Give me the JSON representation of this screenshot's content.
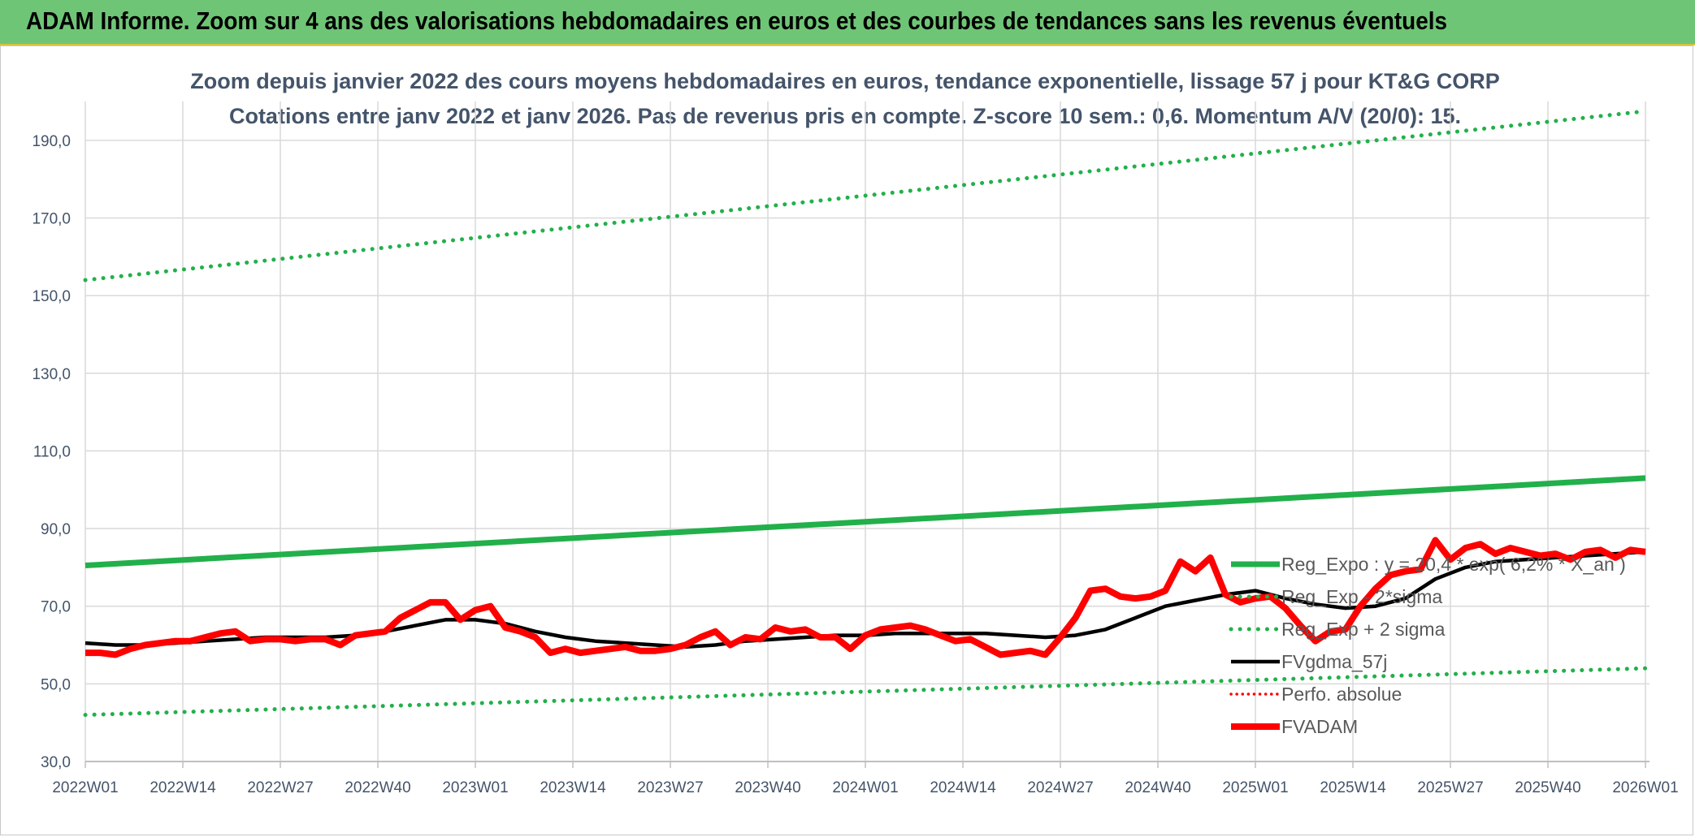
{
  "banner": {
    "title": "ADAM Informe. Zoom sur 4 ans des valorisations hebdomadaires en euros et des courbes de tendances sans les revenus éventuels"
  },
  "chart_data": {
    "type": "line",
    "title_lines": [
      "Zoom depuis janvier 2022 des cours moyens hebdomadaires en euros, tendance exponentielle, lissage 57 j pour KT&G CORP",
      "Cotations entre janv 2022 et janv 2026. Pas de revenus pris en compte. Z-score 10 sem.: 0,6. Momentum A/V (20/0): 15."
    ],
    "xlabel": "",
    "ylabel": "",
    "ylim": [
      30,
      200
    ],
    "yticks": [
      "30,0",
      "50,0",
      "70,0",
      "90,0",
      "110,0",
      "130,0",
      "150,0",
      "170,0",
      "190,0"
    ],
    "ytick_values": [
      30,
      50,
      70,
      90,
      110,
      130,
      150,
      170,
      190
    ],
    "x_range_weeks": [
      0,
      208
    ],
    "xticks": [
      "2022W01",
      "2022W14",
      "2022W27",
      "2022W40",
      "2023W01",
      "2023W14",
      "2023W27",
      "2023W40",
      "2024W01",
      "2024W14",
      "2024W27",
      "2024W40",
      "2025W01",
      "2025W14",
      "2025W27",
      "2025W40",
      "2026W01"
    ],
    "xtick_weeks": [
      0,
      13,
      26,
      39,
      52,
      65,
      78,
      91,
      104,
      117,
      130,
      143,
      156,
      169,
      182,
      195,
      208
    ],
    "grid": true,
    "legend_position": "bottom-right",
    "colors": {
      "green": "#22b04b",
      "black": "#000000",
      "red": "#ff0000",
      "grid": "#d9d9d9",
      "text": "#44546a"
    },
    "series": [
      {
        "name": "Reg_Expo : y = 20,4 * exp( 6,2% * X_an )",
        "style": "solid-green-thick",
        "x": [
          0,
          208
        ],
        "y": [
          80.5,
          103
        ]
      },
      {
        "name": "Reg_Exp - 2*sigma",
        "style": "dotted-green",
        "x": [
          0,
          208
        ],
        "y": [
          42,
          54
        ]
      },
      {
        "name": "Reg_Exp + 2 sigma",
        "style": "dotted-green",
        "x": [
          0,
          208
        ],
        "y": [
          154,
          197.5
        ]
      },
      {
        "name": "FVgdma_57j",
        "style": "solid-black",
        "x": [
          0,
          4,
          8,
          12,
          16,
          20,
          24,
          28,
          32,
          36,
          40,
          44,
          48,
          52,
          56,
          60,
          64,
          68,
          72,
          76,
          80,
          84,
          88,
          92,
          96,
          100,
          104,
          108,
          112,
          116,
          120,
          124,
          128,
          132,
          136,
          140,
          144,
          148,
          152,
          156,
          160,
          164,
          168,
          172,
          176,
          180,
          184,
          188,
          192,
          196,
          200,
          204,
          208
        ],
        "y": [
          60.5,
          60,
          60,
          60.5,
          61,
          61.5,
          62,
          62,
          62,
          62.5,
          63.5,
          65,
          66.5,
          66.5,
          65.5,
          63.5,
          62,
          61,
          60.5,
          60,
          59.5,
          60,
          61,
          61.5,
          62,
          62.5,
          62.5,
          63,
          63,
          63,
          63,
          62.5,
          62,
          62.5,
          64,
          67,
          70,
          71.5,
          73,
          74,
          72,
          70.5,
          69.5,
          70,
          72,
          77,
          80,
          81.5,
          82,
          82.5,
          83,
          83.5,
          84
        ]
      },
      {
        "name": "Perfo. absolue",
        "style": "dotted-red",
        "x": [],
        "y": []
      },
      {
        "name": "FVADAM",
        "style": "solid-red-thick",
        "x": [
          0,
          2,
          4,
          6,
          8,
          10,
          12,
          14,
          16,
          18,
          20,
          22,
          24,
          26,
          28,
          30,
          32,
          34,
          36,
          38,
          40,
          42,
          44,
          46,
          48,
          50,
          52,
          54,
          56,
          58,
          60,
          62,
          64,
          66,
          68,
          70,
          72,
          74,
          76,
          78,
          80,
          82,
          84,
          86,
          88,
          90,
          92,
          94,
          96,
          98,
          100,
          102,
          104,
          106,
          108,
          110,
          112,
          114,
          116,
          118,
          120,
          122,
          124,
          126,
          128,
          130,
          132,
          134,
          136,
          138,
          140,
          142,
          144,
          146,
          148,
          150,
          152,
          154,
          156,
          158,
          160,
          162,
          164,
          166,
          168,
          170,
          172,
          174,
          176,
          178,
          180,
          182,
          184,
          186,
          188,
          190,
          192,
          194,
          196,
          198,
          200,
          202,
          204,
          206,
          208
        ],
        "y": [
          58,
          58,
          57.5,
          59,
          60,
          60.5,
          61,
          61,
          62,
          63,
          63.5,
          61,
          61.5,
          61.5,
          61,
          61.5,
          61.5,
          60,
          62.5,
          63,
          63.5,
          67,
          69,
          71,
          71,
          66.5,
          69,
          70,
          64.5,
          63.5,
          62,
          58,
          59,
          58,
          58.5,
          59,
          59.5,
          58.5,
          58.5,
          59,
          60,
          62,
          63.5,
          60,
          62,
          61.5,
          64.5,
          63.5,
          64,
          62,
          62,
          59,
          62.5,
          64,
          64.5,
          65,
          64,
          62.5,
          61,
          61.5,
          59.5,
          57.5,
          58,
          58.5,
          57.5,
          62,
          67,
          74,
          74.5,
          72.5,
          72,
          72.5,
          74,
          81.5,
          79,
          82.5,
          73,
          71,
          72,
          72.5,
          69.5,
          65,
          61,
          63.5,
          64,
          70,
          74.5,
          78,
          79,
          79.5,
          87,
          82,
          85,
          86,
          83.5,
          85,
          84,
          83,
          83.5,
          82,
          84,
          84.5,
          82.5,
          84.5,
          84
        ]
      }
    ]
  }
}
